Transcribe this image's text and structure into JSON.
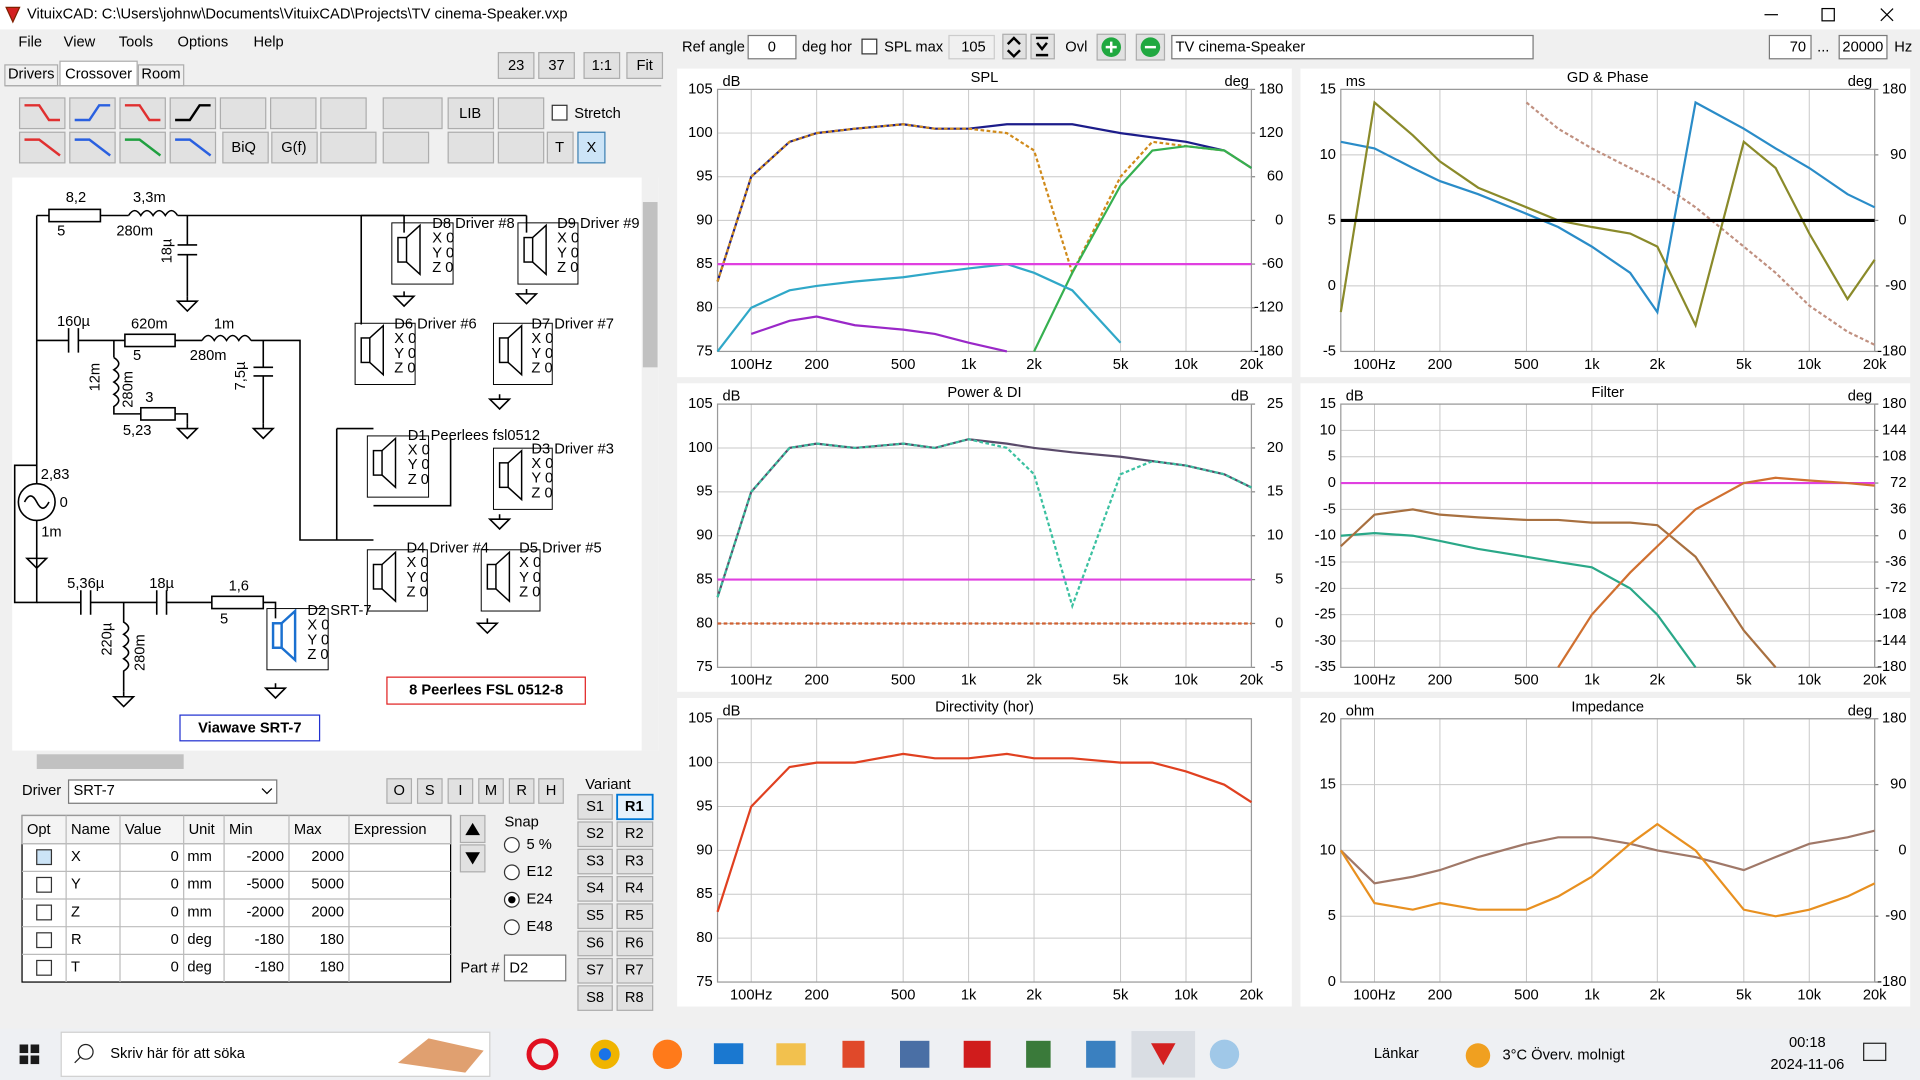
{
  "title_bar": "VituixCAD: C:\\Users\\johnw\\Documents\\VituixCAD\\Projects\\TV cinema-Speaker.vxp",
  "menu": [
    "File",
    "View",
    "Tools",
    "Options",
    "Help"
  ],
  "zoom_buttons": [
    "23",
    "37",
    "1:1",
    "Fit"
  ],
  "tabs": [
    "Drivers",
    "Crossover",
    "Room"
  ],
  "toolbar": {
    "lib": "LIB",
    "stretch": "Stretch",
    "biq": "BiQ",
    "gf": "G(f)",
    "t": "T",
    "x": "X"
  },
  "schematic": {
    "labels": [
      "8,2",
      "5",
      "3,3m",
      "280m",
      "18µ",
      "160µ",
      "620m",
      "5",
      "1m",
      "280m",
      "12m",
      "280m",
      "7,5µ",
      "3",
      "5,23",
      "2,83",
      "0",
      "1m",
      "5,36µ",
      "18µ",
      "1,6",
      "5",
      "220µ",
      "280m"
    ],
    "drivers": [
      {
        "name": "D8 Driver #8",
        "coords": [
          "X 0",
          "Y 0",
          "Z 0"
        ]
      },
      {
        "name": "D9 Driver #9",
        "coords": [
          "X 0",
          "Y 0",
          "Z 0"
        ]
      },
      {
        "name": "D6 Driver #6",
        "coords": [
          "X 0",
          "Y 0",
          "Z 0"
        ]
      },
      {
        "name": "D7 Driver #7",
        "coords": [
          "X 0",
          "Y 0",
          "Z 0"
        ]
      },
      {
        "name": "D1 Peerlees fsl0512",
        "coords": [
          "X 0",
          "Y 0",
          "Z 0"
        ]
      },
      {
        "name": "D3 Driver #3",
        "coords": [
          "X 0",
          "Y 0",
          "Z 0"
        ]
      },
      {
        "name": "D4 Driver #4",
        "coords": [
          "X 0",
          "Y 0",
          "Z 0"
        ]
      },
      {
        "name": "D5 Driver #5",
        "coords": [
          "X 0",
          "Y 0",
          "Z 0"
        ]
      },
      {
        "name": "D2 SRT-7",
        "coords": [
          "X 0",
          "Y 0",
          "Z 0"
        ]
      }
    ],
    "boxes": [
      "8 Peerlees FSL 0512-8",
      "Viawave SRT-7"
    ]
  },
  "driver_panel": {
    "label": "Driver",
    "selected": "SRT-7",
    "buttons": [
      "O",
      "S",
      "I",
      "M",
      "R",
      "H"
    ],
    "table": {
      "header": [
        "Opt",
        "Name",
        "Value",
        "Unit",
        "Min",
        "Max",
        "Expression"
      ],
      "rows": [
        [
          "X",
          0,
          "mm",
          -2000,
          2000
        ],
        [
          "Y",
          0,
          "mm",
          -5000,
          5000
        ],
        [
          "Z",
          0,
          "mm",
          -2000,
          2000
        ],
        [
          "R",
          0,
          "deg",
          -180,
          180
        ],
        [
          "T",
          0,
          "deg",
          -180,
          180
        ]
      ]
    },
    "snap": {
      "label": "Snap",
      "options": [
        "5 %",
        "E12",
        "E24",
        "E48"
      ],
      "selected": 2
    },
    "part_label": "Part #",
    "part": "D2",
    "variant": {
      "label": "Variant",
      "s": [
        "S1",
        "S2",
        "S3",
        "S4",
        "S5",
        "S6",
        "S7",
        "S8"
      ],
      "r": [
        "R1",
        "R2",
        "R3",
        "R4",
        "R5",
        "R6",
        "R7",
        "R8"
      ]
    }
  },
  "top_controls": {
    "ref_angle": "Ref angle",
    "ref_value": "0",
    "deg_hor": "deg hor",
    "spl_max": "SPL max",
    "spl_value": "105",
    "ovl": "Ovl",
    "name": "TV cinema-Speaker",
    "f_min": "70",
    "dots": "...",
    "f_max": "20000",
    "hz": "Hz"
  },
  "charts": [
    {
      "type": "line",
      "title": "SPL",
      "y_unit": "dB",
      "y2_unit": "deg",
      "log_x": true,
      "grid": true,
      "x": [
        70,
        100,
        150,
        200,
        300,
        500,
        700,
        1000,
        1500,
        2000,
        3000,
        5000,
        7000,
        10000,
        15000,
        20000
      ],
      "xlim": [
        70,
        20000
      ],
      "xticks": [
        {
          "value": 100,
          "label": "100Hz"
        },
        200,
        500,
        {
          "value": 1000,
          "label": "1k"
        },
        {
          "value": 2000,
          "label": "2k"
        },
        {
          "value": 5000,
          "label": "5k"
        },
        {
          "value": 10000,
          "label": "10k"
        },
        {
          "value": 20000,
          "label": "20k"
        }
      ],
      "ylim": [
        75,
        105
      ],
      "yticks": [
        75,
        80,
        85,
        90,
        95,
        100,
        105
      ],
      "y2lim": [
        -180,
        180
      ],
      "y2ticks": [
        -180,
        -120,
        -60,
        0,
        60,
        120,
        180
      ],
      "series": [
        {
          "color": "#1c1c8a",
          "dash": false,
          "values": [
            83,
            95,
            99,
            100,
            100.5,
            101,
            100.5,
            100.5,
            101,
            101,
            101,
            100,
            99.5,
            99,
            98,
            96
          ]
        },
        {
          "color": "#d08a1a",
          "dash": true,
          "values": [
            83,
            95,
            99,
            100,
            100.5,
            101,
            100.5,
            100.5,
            100,
            98,
            84,
            95,
            99,
            98.5,
            98,
            96
          ]
        },
        {
          "color": "#36b050",
          "dash": false,
          "values": [
            null,
            null,
            null,
            null,
            null,
            null,
            null,
            null,
            null,
            75,
            84,
            94,
            98,
            98.5,
            98,
            96
          ]
        },
        {
          "color": "#30a8c8",
          "dash": false,
          "values": [
            75,
            80,
            82,
            82.5,
            83,
            83.5,
            84,
            84.5,
            85,
            84,
            82,
            76,
            null,
            null,
            null,
            null
          ]
        },
        {
          "color": "#9a28c8",
          "dash": false,
          "values": [
            null,
            77,
            78.5,
            79,
            78,
            77.5,
            77,
            76,
            75,
            null,
            null,
            null,
            null,
            null,
            null,
            null
          ]
        },
        {
          "color": "#e040e0",
          "dash": false,
          "values": [
            85,
            85,
            85,
            85,
            85,
            85,
            85,
            85,
            85,
            85,
            85,
            85,
            85,
            85,
            85,
            85
          ]
        }
      ]
    },
    {
      "type": "line",
      "title": "GD & Phase",
      "y_unit": "ms",
      "y2_unit": "deg",
      "log_x": true,
      "grid": true,
      "x": [
        70,
        100,
        150,
        200,
        300,
        500,
        700,
        1000,
        1500,
        2000,
        3000,
        5000,
        7000,
        10000,
        15000,
        20000
      ],
      "xlim": [
        70,
        20000
      ],
      "xticks": [
        {
          "value": 100,
          "label": "100Hz"
        },
        200,
        500,
        {
          "value": 1000,
          "label": "1k"
        },
        {
          "value": 2000,
          "label": "2k"
        },
        {
          "value": 5000,
          "label": "5k"
        },
        {
          "value": 10000,
          "label": "10k"
        },
        {
          "value": 20000,
          "label": "20k"
        }
      ],
      "ylim": [
        -5,
        15
      ],
      "yticks": [
        -5,
        0,
        5,
        10,
        15
      ],
      "y2lim": [
        -180,
        180
      ],
      "y2ticks": [
        -180,
        -90,
        0,
        90,
        180
      ],
      "series": [
        {
          "color": "#c09080",
          "dash": true,
          "values": [
            null,
            null,
            null,
            null,
            null,
            14,
            12,
            10.5,
            9,
            8,
            6,
            3,
            1,
            -1.5,
            -3.5,
            -4.5
          ]
        },
        {
          "color": "#2a8cc8",
          "dash": false,
          "values": [
            11,
            10.5,
            9,
            8,
            7,
            5.5,
            4.5,
            3,
            1,
            -2,
            14,
            12,
            10.5,
            9,
            7,
            6
          ]
        },
        {
          "color": "#8a8a2a",
          "dash": false,
          "values": [
            -2,
            14,
            11.5,
            9.5,
            7.5,
            6,
            5,
            4.5,
            4,
            3,
            -3,
            11,
            9,
            4,
            -1,
            2
          ]
        },
        {
          "color": "#000000",
          "dash": false,
          "values": [
            5,
            5,
            5,
            5,
            5,
            5,
            5,
            5,
            5,
            5,
            5,
            5,
            5,
            5,
            5,
            5
          ]
        }
      ]
    },
    {
      "type": "line",
      "title": "Power & DI",
      "y_unit": "dB",
      "y2_unit": "dB",
      "log_x": true,
      "grid": true,
      "x": [
        70,
        100,
        150,
        200,
        300,
        500,
        700,
        1000,
        1500,
        2000,
        3000,
        5000,
        7000,
        10000,
        15000,
        20000
      ],
      "xlim": [
        70,
        20000
      ],
      "xticks": [
        {
          "value": 100,
          "label": "100Hz"
        },
        200,
        500,
        {
          "value": 1000,
          "label": "1k"
        },
        {
          "value": 2000,
          "label": "2k"
        },
        {
          "value": 5000,
          "label": "5k"
        },
        {
          "value": 10000,
          "label": "10k"
        },
        {
          "value": 20000,
          "label": "20k"
        }
      ],
      "ylim": [
        75,
        105
      ],
      "yticks": [
        75,
        80,
        85,
        90,
        95,
        100,
        105
      ],
      "y2lim": [
        -5,
        25
      ],
      "y2ticks": [
        -5,
        0,
        5,
        10,
        15,
        20,
        25
      ],
      "series": [
        {
          "color": "#5a4a6a",
          "dash": false,
          "values": [
            83,
            95,
            100,
            100.5,
            100,
            100.5,
            100,
            101,
            100.5,
            100,
            99.5,
            99,
            98.5,
            98,
            97,
            95.5
          ]
        },
        {
          "color": "#3ac0a0",
          "dash": true,
          "values": [
            83,
            95,
            100,
            100.5,
            100,
            100.5,
            100,
            101,
            100,
            97,
            82,
            97,
            98.5,
            98,
            97,
            95.5
          ]
        },
        {
          "color": "#e040e0",
          "dash": false,
          "values": [
            85,
            85,
            85,
            85,
            85,
            85,
            85,
            85,
            85,
            85,
            85,
            85,
            85,
            85,
            85,
            85
          ]
        },
        {
          "color": "#d06030",
          "dash": true,
          "values": [
            80,
            80,
            80,
            80,
            80,
            80,
            80,
            80,
            80,
            80,
            80,
            80,
            80,
            80,
            80,
            80
          ]
        }
      ]
    },
    {
      "type": "line",
      "title": "Filter",
      "y_unit": "dB",
      "y2_unit": "deg",
      "log_x": true,
      "grid": true,
      "x": [
        70,
        100,
        150,
        200,
        300,
        500,
        700,
        1000,
        1500,
        2000,
        3000,
        5000,
        7000,
        10000,
        15000,
        20000
      ],
      "xlim": [
        70,
        20000
      ],
      "xticks": [
        {
          "value": 100,
          "label": "100Hz"
        },
        200,
        500,
        {
          "value": 1000,
          "label": "1k"
        },
        {
          "value": 2000,
          "label": "2k"
        },
        {
          "value": 5000,
          "label": "5k"
        },
        {
          "value": 10000,
          "label": "10k"
        },
        {
          "value": 20000,
          "label": "20k"
        }
      ],
      "ylim": [
        -35,
        15
      ],
      "yticks": [
        -35,
        -30,
        -25,
        -20,
        -15,
        -10,
        -5,
        0,
        5,
        10,
        15
      ],
      "y2lim": [
        -180,
        180
      ],
      "y2ticks": [
        -180,
        -144,
        -108,
        -72,
        -36,
        0,
        36,
        72,
        108,
        144,
        180
      ],
      "series": [
        {
          "color": "#e040e0",
          "dash": false,
          "values": [
            0,
            0,
            0,
            0,
            0,
            0,
            0,
            0,
            0,
            0,
            0,
            0,
            0,
            0,
            0,
            0
          ]
        },
        {
          "color": "#2aa888",
          "dash": false,
          "values": [
            -10,
            -9.5,
            -10,
            -11,
            -12.5,
            -14,
            -15,
            -16,
            -20,
            -25,
            -35,
            null,
            null,
            null,
            null,
            null
          ]
        },
        {
          "color": "#a87040",
          "dash": false,
          "values": [
            -12,
            -6,
            -5,
            -6,
            -6.5,
            -7,
            -7,
            -7.5,
            -7.5,
            -8,
            -14,
            -28,
            -35,
            null,
            null,
            null
          ]
        },
        {
          "color": "#d07030",
          "dash": false,
          "values": [
            null,
            null,
            null,
            null,
            null,
            null,
            -35,
            -25,
            -17,
            -12,
            -5,
            0,
            1,
            0.5,
            0,
            -0.5
          ]
        }
      ]
    },
    {
      "type": "line",
      "title": "Directivity (hor)",
      "y_unit": "dB",
      "log_x": true,
      "grid": true,
      "x": [
        70,
        100,
        150,
        200,
        300,
        500,
        700,
        1000,
        1500,
        2000,
        3000,
        5000,
        7000,
        10000,
        15000,
        20000
      ],
      "xlim": [
        70,
        20000
      ],
      "xticks": [
        {
          "value": 100,
          "label": "100Hz"
        },
        200,
        500,
        {
          "value": 1000,
          "label": "1k"
        },
        {
          "value": 2000,
          "label": "2k"
        },
        {
          "value": 5000,
          "label": "5k"
        },
        {
          "value": 10000,
          "label": "10k"
        },
        {
          "value": 20000,
          "label": "20k"
        }
      ],
      "ylim": [
        75,
        105
      ],
      "yticks": [
        75,
        80,
        85,
        90,
        95,
        100,
        105
      ],
      "series": [
        {
          "color": "#e04020",
          "dash": false,
          "values": [
            83,
            95,
            99.5,
            100,
            100,
            101,
            100.5,
            100.5,
            101,
            100.5,
            100.5,
            100,
            100,
            99,
            97.5,
            95.5
          ]
        }
      ]
    },
    {
      "type": "line",
      "title": "Impedance",
      "y_unit": "ohm",
      "y2_unit": "deg",
      "log_x": true,
      "grid": true,
      "x": [
        70,
        100,
        150,
        200,
        300,
        500,
        700,
        1000,
        1500,
        2000,
        3000,
        5000,
        7000,
        10000,
        15000,
        20000
      ],
      "xlim": [
        70,
        20000
      ],
      "xticks": [
        {
          "value": 100,
          "label": "100Hz"
        },
        200,
        500,
        {
          "value": 1000,
          "label": "1k"
        },
        {
          "value": 2000,
          "label": "2k"
        },
        {
          "value": 5000,
          "label": "5k"
        },
        {
          "value": 10000,
          "label": "10k"
        },
        {
          "value": 20000,
          "label": "20k"
        }
      ],
      "ylim": [
        0,
        20
      ],
      "yticks": [
        0,
        5,
        10,
        15,
        20
      ],
      "y2lim": [
        -180,
        180
      ],
      "y2ticks": [
        -180,
        -90,
        0,
        90,
        180
      ],
      "series": [
        {
          "color": "#a07868",
          "dash": false,
          "values": [
            10,
            7.5,
            8,
            8.5,
            9.5,
            10.5,
            11,
            11,
            10.5,
            10,
            9.5,
            8.5,
            9.5,
            10.5,
            11,
            11.5
          ]
        },
        {
          "color": "#e89020",
          "dash": false,
          "values": [
            10,
            6,
            5.5,
            6,
            5.5,
            5.5,
            6.5,
            8,
            10.5,
            12,
            10,
            5.5,
            5,
            5.5,
            6.5,
            7.5
          ]
        }
      ]
    }
  ],
  "taskbar": {
    "search": "Skriv här för att söka",
    "links": "Länkar",
    "weather": "3°C Överv. molnigt",
    "time": "00:18",
    "date": "2024-11-06"
  }
}
